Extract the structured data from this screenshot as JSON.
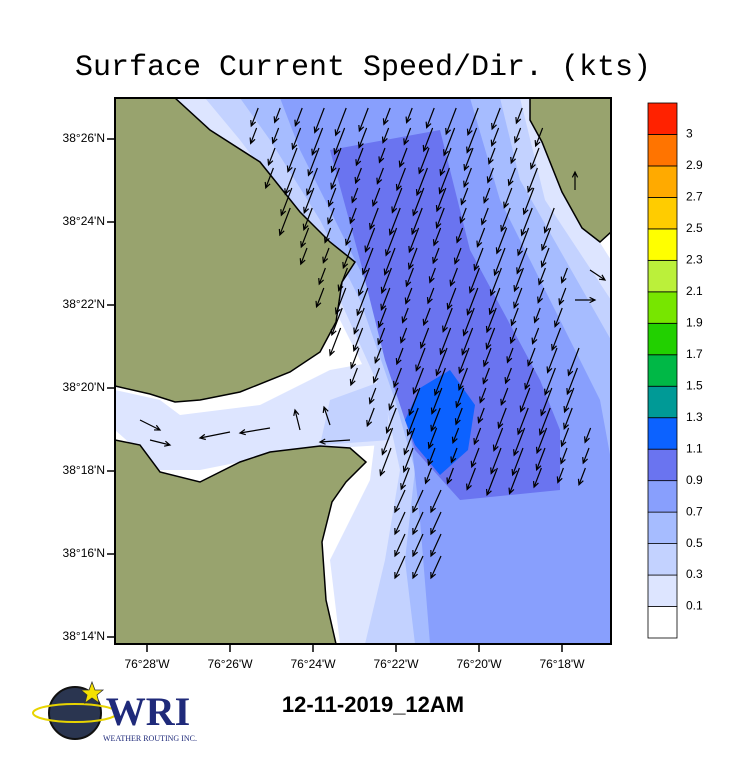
{
  "title": "Surface Current Speed/Dir. (kts)",
  "map": {
    "lat_labels": [
      "38°26'N",
      "38°24'N",
      "38°22'N",
      "38°20'N",
      "38°18'N",
      "38°16'N",
      "38°14'N"
    ],
    "lon_labels": [
      "76°28'W",
      "76°26'W",
      "76°24'W",
      "76°22'W",
      "76°20'W",
      "76°18'W"
    ]
  },
  "colorbar": {
    "levels": [
      0.1,
      0.3,
      0.5,
      0.7,
      0.9,
      1.1,
      1.3,
      1.5,
      1.7,
      1.9,
      2.1,
      2.3,
      2.5,
      2.7,
      2.9,
      3
    ],
    "colors": [
      "#ffffff",
      "#dde5ff",
      "#c3d2ff",
      "#a6bcff",
      "#889ffd",
      "#6a74f0",
      "#0c62ff",
      "#009a96",
      "#00b846",
      "#22d000",
      "#77e600",
      "#bbf03a",
      "#ffff00",
      "#ffcc00",
      "#ffaa00",
      "#ff7400",
      "#ff2200"
    ]
  },
  "timestamp": "12-11-2019_12AM",
  "logo": {
    "name": "WRI",
    "tagline": "WEATHER ROUTING INC."
  }
}
